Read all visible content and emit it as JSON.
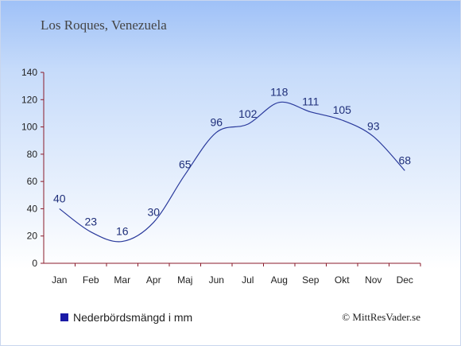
{
  "chart_data": {
    "type": "line",
    "title": "Los Roques, Venezuela",
    "categories": [
      "Jan",
      "Feb",
      "Mar",
      "Apr",
      "Maj",
      "Jun",
      "Jul",
      "Aug",
      "Sep",
      "Okt",
      "Nov",
      "Dec"
    ],
    "series": [
      {
        "name": "Nederbördsmängd i mm",
        "values": [
          40,
          23,
          16,
          30,
          65,
          96,
          102,
          118,
          111,
          105,
          93,
          68
        ]
      }
    ],
    "ylim": [
      0,
      140
    ],
    "yticks": [
      "0",
      "20",
      "40",
      "60",
      "80",
      "100",
      "120",
      "140"
    ],
    "grid": false,
    "legend": "bottom-left",
    "colors": {
      "series": "#2a3a9c",
      "swatch": "#1a1aa6",
      "axis": "#8a1c2b"
    }
  },
  "footer": {
    "copyright": "© MittResVader.se"
  }
}
